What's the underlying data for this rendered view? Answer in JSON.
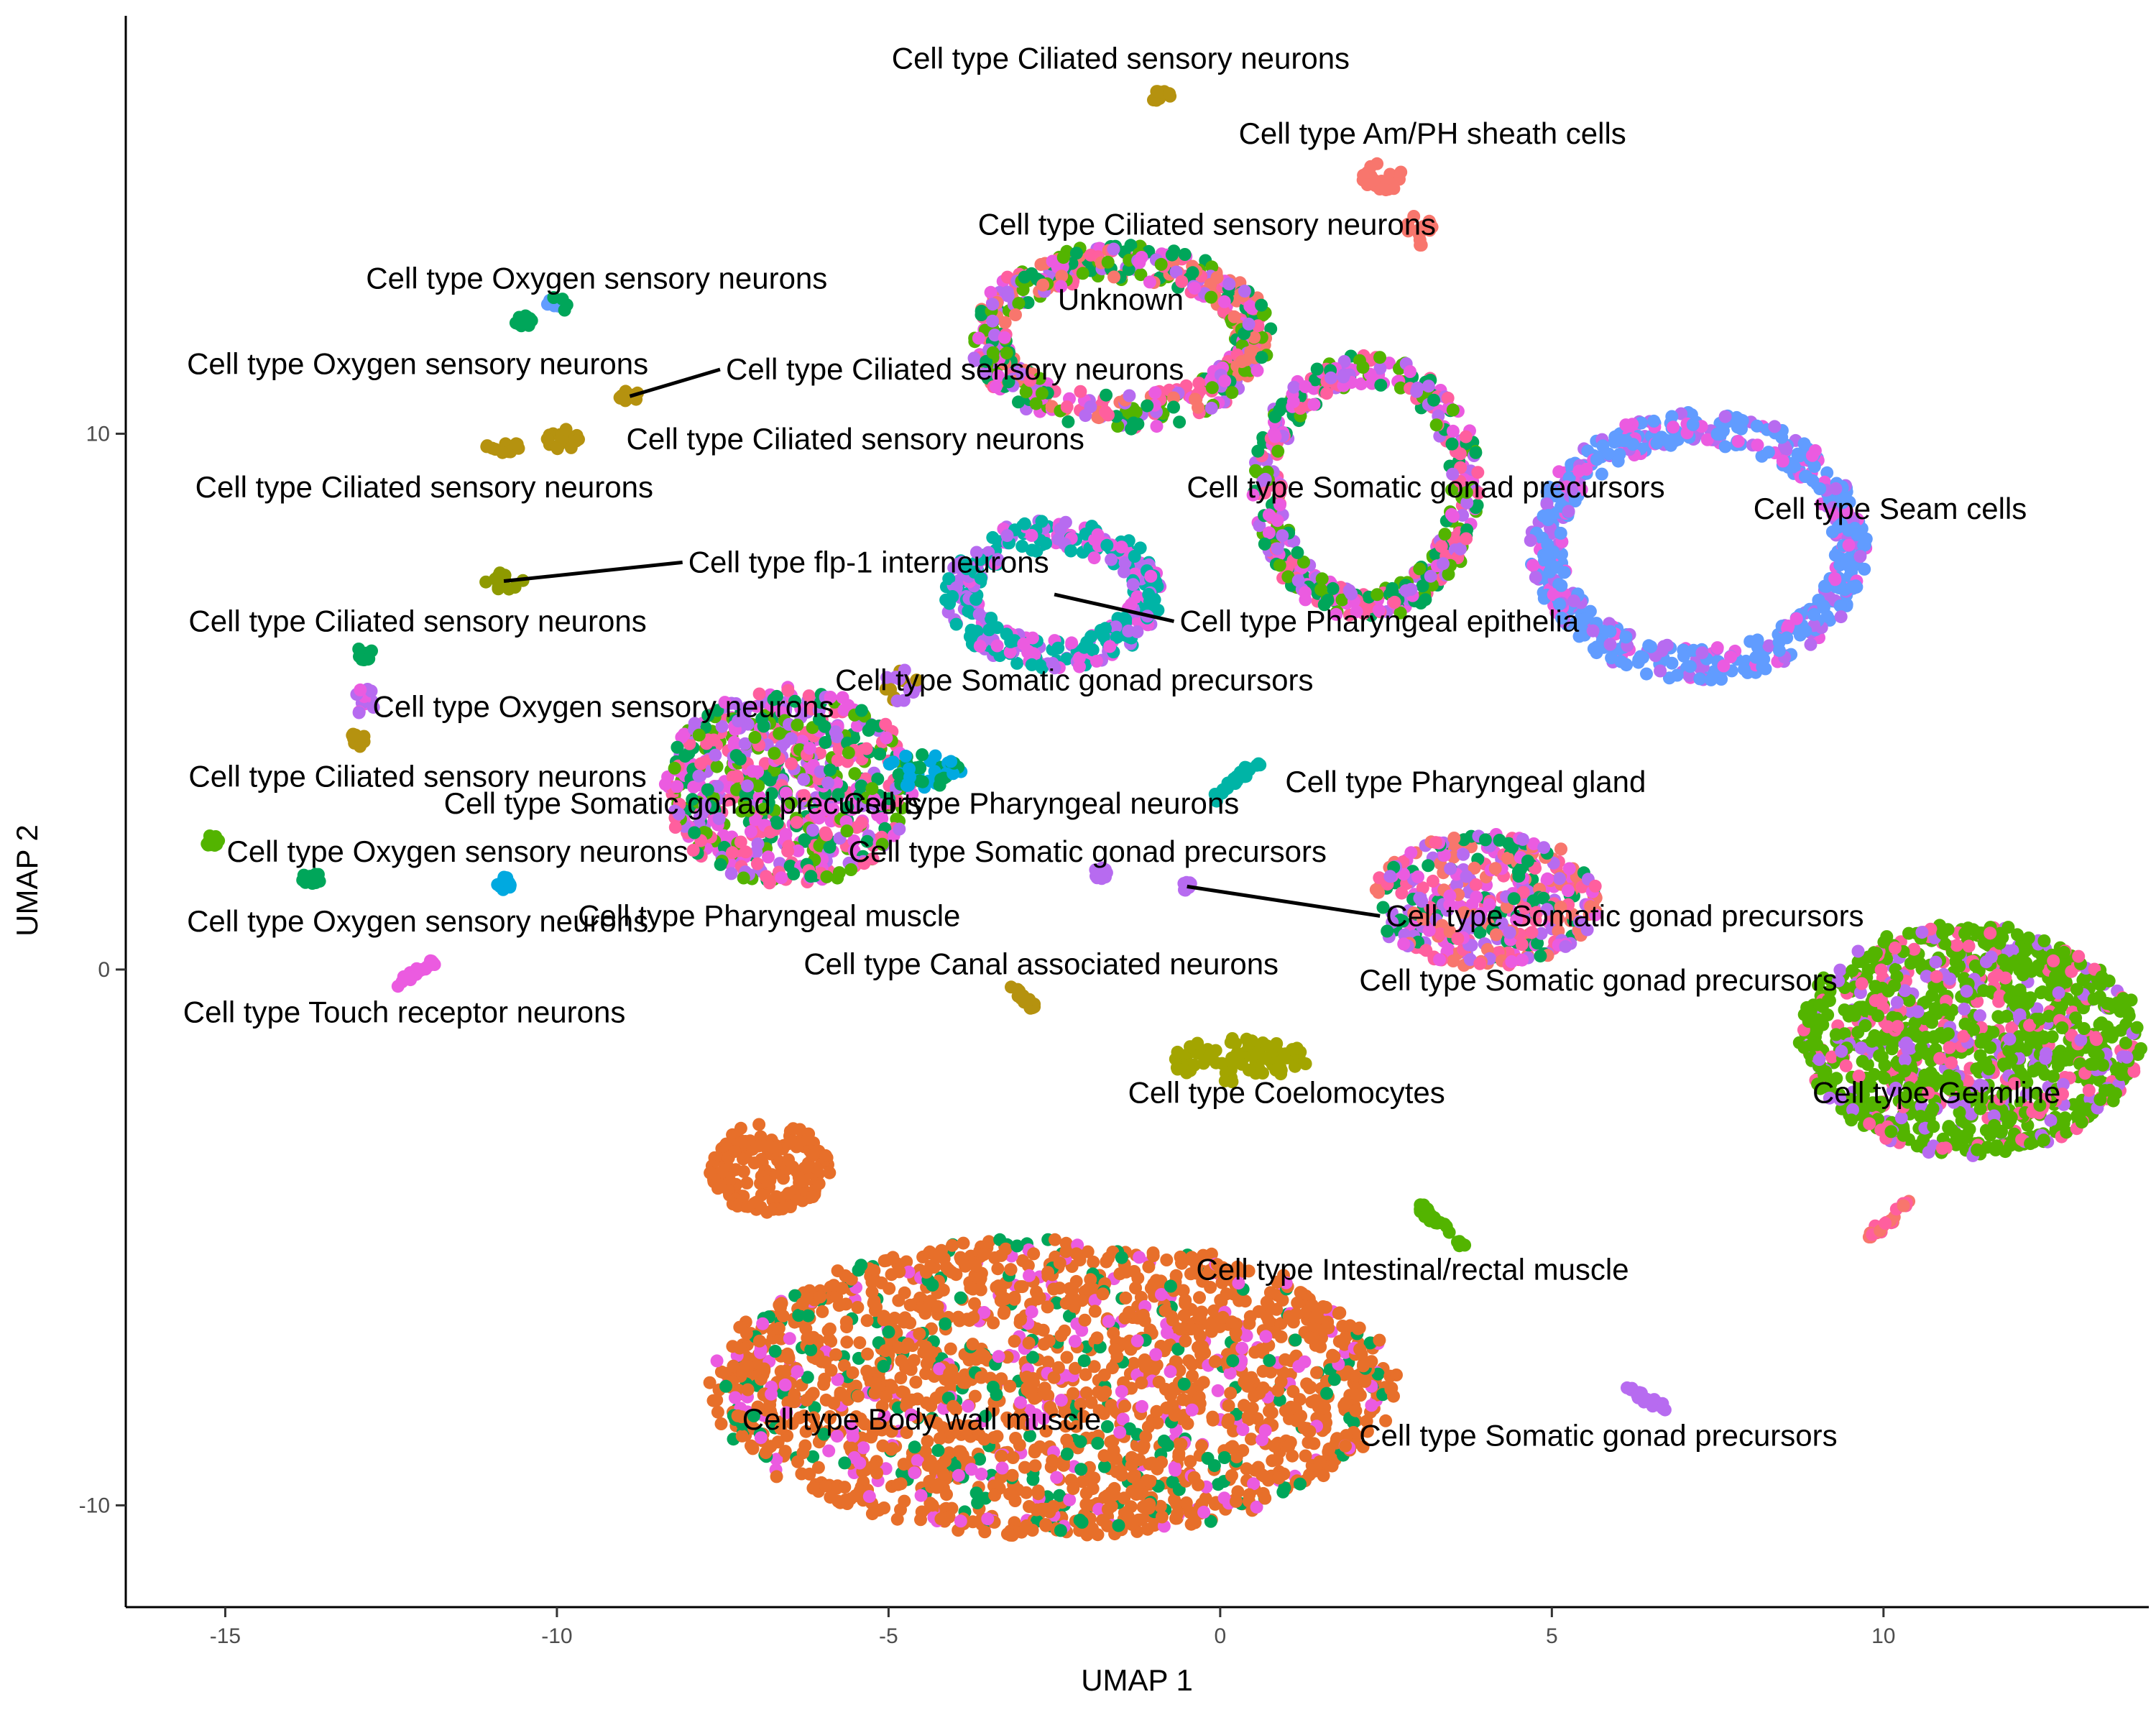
{
  "chart_data": {
    "type": "scatter",
    "xlabel": "UMAP 1",
    "ylabel": "UMAP 2",
    "xlim": [
      -16.5,
      14.0
    ],
    "ylim": [
      -11.9,
      17.8
    ],
    "x_ticks": [
      {
        "value": -15,
        "label": "-15"
      },
      {
        "value": -10,
        "label": "-10"
      },
      {
        "value": -5,
        "label": "-5"
      },
      {
        "value": 0,
        "label": "0"
      },
      {
        "value": 5,
        "label": "5"
      },
      {
        "value": 10,
        "label": "10"
      }
    ],
    "y_ticks": [
      {
        "value": -10,
        "label": "-10"
      },
      {
        "value": 0,
        "label": "0"
      },
      {
        "value": 10,
        "label": "10"
      }
    ],
    "grid": false,
    "legend": "none",
    "colors": {
      "red": "#F8766D",
      "orange": "#E76F2A",
      "olive": "#A3A500",
      "gold": "#B5920F",
      "green": "#53B400",
      "emerald": "#00A65A",
      "teal": "#00B4A6",
      "sky": "#00A9E0",
      "blue": "#619CFF",
      "violet": "#B76BF0",
      "magenta": "#EB5BE0",
      "pink": "#FF5F9E",
      "yellowgreen": "#8E9A00"
    },
    "clusters": [
      {
        "label": "Cell type Ciliated sensory neurons",
        "label_x": -1.5,
        "label_y": 17.0,
        "shape": "blob",
        "cx": -0.9,
        "cy": 16.3,
        "rx": 0.15,
        "ry": 0.1,
        "colors": [
          "gold"
        ]
      },
      {
        "label": "Cell type Am/PH sheath cells",
        "label_x": 3.2,
        "label_y": 15.6,
        "shape": "blob",
        "cx": 2.5,
        "cy": 14.8,
        "rx": 0.35,
        "ry": 0.25,
        "colors": [
          "red"
        ]
      },
      {
        "label": "Cell type Ciliated sensory neurons",
        "label_x": -0.2,
        "label_y": 13.9,
        "shape": "blob",
        "cx": 3.0,
        "cy": 13.8,
        "rx": 0.2,
        "ry": 0.3,
        "colors": [
          "red"
        ]
      },
      {
        "label": "Unknown",
        "label_x": -1.5,
        "label_y": 12.5,
        "shape": "ring",
        "cx": -1.5,
        "cy": 11.8,
        "rx": 2.0,
        "ry": 1.4,
        "width": 0.55,
        "colors": [
          "pink",
          "red",
          "magenta",
          "violet",
          "emerald",
          "green"
        ]
      },
      {
        "label": "Cell type Oxygen sensory neurons",
        "label_x": -9.4,
        "label_y": 12.9,
        "shape": "blob",
        "cx": -10.0,
        "cy": 12.4,
        "rx": 0.15,
        "ry": 0.15,
        "colors": [
          "emerald",
          "blue"
        ]
      },
      {
        "label": "Cell type Oxygen sensory neurons",
        "label_x": -12.1,
        "label_y": 11.3,
        "shape": "blob",
        "cx": -10.5,
        "cy": 12.1,
        "rx": 0.12,
        "ry": 0.1,
        "colors": [
          "emerald"
        ]
      },
      {
        "label": "Cell type Ciliated sensory neurons",
        "label_x": -4.0,
        "label_y": 11.2,
        "shape": "blob",
        "cx": -8.9,
        "cy": 10.7,
        "rx": 0.15,
        "ry": 0.1,
        "colors": [
          "gold"
        ],
        "leader": true
      },
      {
        "label": "Cell type Ciliated sensory neurons",
        "label_x": -5.5,
        "label_y": 9.9,
        "shape": "blob",
        "cx": -9.9,
        "cy": 9.9,
        "rx": 0.25,
        "ry": 0.2,
        "colors": [
          "gold"
        ]
      },
      {
        "label": "Cell type Ciliated sensory neurons",
        "label_x": -12.0,
        "label_y": 9.0,
        "shape": "blob",
        "cx": -10.8,
        "cy": 9.75,
        "rx": 0.25,
        "ry": 0.1,
        "colors": [
          "gold"
        ]
      },
      {
        "label": "Cell type flp-1 interneurons",
        "label_x": -5.3,
        "label_y": 7.6,
        "shape": "blob",
        "cx": -10.8,
        "cy": 7.25,
        "rx": 0.3,
        "ry": 0.15,
        "colors": [
          "yellowgreen"
        ],
        "leader": true
      },
      {
        "label": "Cell type Somatic gonad precursors",
        "label_x": 3.1,
        "label_y": 9.0,
        "shape": "ring",
        "cx": 2.2,
        "cy": 9.0,
        "rx": 1.5,
        "ry": 2.2,
        "width": 0.45,
        "colors": [
          "pink",
          "violet",
          "emerald",
          "magenta",
          "green"
        ]
      },
      {
        "label": "Cell type Seam cells",
        "label_x": 10.1,
        "label_y": 8.6,
        "shape": "ring",
        "cx": 7.2,
        "cy": 7.9,
        "rx": 2.3,
        "ry": 2.2,
        "width": 0.5,
        "colors": [
          "blue",
          "blue",
          "blue",
          "violet",
          "magenta"
        ]
      },
      {
        "label": "Cell type Pharyngeal epithelia",
        "label_x": 2.4,
        "label_y": 6.5,
        "shape": "ring",
        "cx": -2.5,
        "cy": 7.0,
        "rx": 1.4,
        "ry": 1.1,
        "width": 0.5,
        "colors": [
          "teal",
          "teal",
          "violet",
          "magenta"
        ],
        "leader": true
      },
      {
        "label": "Cell type Ciliated sensory neurons",
        "label_x": -12.1,
        "label_y": 6.5,
        "shape": "blob",
        "cx": -12.9,
        "cy": 5.9,
        "rx": 0.12,
        "ry": 0.12,
        "colors": [
          "emerald"
        ]
      },
      {
        "label": "Cell type Somatic gonad precursors",
        "label_x": -2.2,
        "label_y": 5.4,
        "shape": "blob",
        "cx": -4.8,
        "cy": 5.3,
        "rx": 0.25,
        "ry": 0.3,
        "colors": [
          "gold",
          "violet"
        ]
      },
      {
        "label": "Cell type Oxygen sensory neurons",
        "label_x": -9.3,
        "label_y": 4.9,
        "shape": "blob",
        "cx": -12.9,
        "cy": 5.0,
        "rx": 0.15,
        "ry": 0.25,
        "colors": [
          "magenta",
          "violet"
        ]
      },
      {
        "label": "Cell type Ciliated sensory neurons",
        "label_x": -12.1,
        "label_y": 3.6,
        "shape": "blob",
        "cx": -13.0,
        "cy": 4.3,
        "rx": 0.1,
        "ry": 0.15,
        "colors": [
          "gold"
        ]
      },
      {
        "label": "Cell type Somatic gonad precursors",
        "label_x": -8.1,
        "label_y": 3.1,
        "shape": "blob",
        "cx": -6.5,
        "cy": 3.4,
        "rx": 1.8,
        "ry": 1.8,
        "colors": [
          "magenta",
          "violet",
          "pink",
          "emerald",
          "green"
        ]
      },
      {
        "label": "Cell type Pharyngeal neurons",
        "label_x": -2.7,
        "label_y": 3.1,
        "shape": "blob",
        "cx": -4.5,
        "cy": 3.7,
        "rx": 0.6,
        "ry": 0.3,
        "colors": [
          "sky",
          "emerald"
        ]
      },
      {
        "label": "Cell type Pharyngeal gland",
        "label_x": 3.7,
        "label_y": 3.5,
        "shape": "line",
        "x1": -0.1,
        "y1": 3.2,
        "x2": 0.6,
        "y2": 3.9,
        "colors": [
          "teal"
        ]
      },
      {
        "label": "Cell type Oxygen sensory neurons",
        "label_x": -11.5,
        "label_y": 2.2,
        "shape": "blob",
        "cx": -15.2,
        "cy": 2.4,
        "rx": 0.1,
        "ry": 0.1,
        "colors": [
          "green"
        ]
      },
      {
        "label": "Cell type Somatic gonad precursors",
        "label_x": -2.0,
        "label_y": 2.2,
        "shape": "blob",
        "cx": -1.8,
        "cy": 1.8,
        "rx": 0.1,
        "ry": 0.1,
        "colors": [
          "violet"
        ]
      },
      {
        "label": "Cell type Somatic gonad precursors",
        "label_x": 6.1,
        "label_y": 1.0,
        "shape": "blob",
        "cx": -0.5,
        "cy": 1.55,
        "rx": 0.08,
        "ry": 0.08,
        "colors": [
          "violet"
        ],
        "leader": true
      },
      {
        "label": "Cell type Oxygen sensory neurons",
        "label_x": -12.1,
        "label_y": 0.9,
        "shape": "blob",
        "cx": -13.7,
        "cy": 1.7,
        "rx": 0.15,
        "ry": 0.1,
        "colors": [
          "emerald"
        ]
      },
      {
        "label": "Cell type Pharyngeal muscle",
        "label_x": -6.8,
        "label_y": 1.0,
        "shape": "blob",
        "cx": -10.8,
        "cy": 1.6,
        "rx": 0.1,
        "ry": 0.12,
        "colors": [
          "sky"
        ]
      },
      {
        "label": "Cell type Canal associated neurons",
        "label_x": -2.7,
        "label_y": 0.1,
        "shape": "line",
        "x1": -3.2,
        "y1": -0.3,
        "x2": -2.8,
        "y2": -0.7,
        "colors": [
          "gold"
        ]
      },
      {
        "label": "Cell type Somatic gonad precursors",
        "label_x": 5.7,
        "label_y": -0.2,
        "shape": "blob",
        "cx": 4.0,
        "cy": 1.3,
        "rx": 1.7,
        "ry": 1.2,
        "colors": [
          "pink",
          "violet",
          "magenta",
          "emerald",
          "red"
        ]
      },
      {
        "label": "Cell type Touch receptor neurons",
        "label_x": -12.3,
        "label_y": -0.8,
        "shape": "line",
        "x1": -12.4,
        "y1": -0.3,
        "x2": -11.8,
        "y2": 0.2,
        "colors": [
          "magenta"
        ]
      },
      {
        "label": "Cell type Coelomocytes",
        "label_x": 1.0,
        "label_y": -2.3,
        "shape": "blob",
        "cx": 0.3,
        "cy": -1.7,
        "rx": 1.0,
        "ry": 0.4,
        "colors": [
          "olive"
        ]
      },
      {
        "label": "Cell type Germline",
        "label_x": 10.8,
        "label_y": -2.3,
        "shape": "blob",
        "cx": 11.3,
        "cy": -1.3,
        "rx": 2.5,
        "ry": 2.1,
        "colors": [
          "green",
          "green",
          "green",
          "green",
          "violet",
          "pink"
        ]
      },
      {
        "label": "Cell type Germline",
        "label_x": 10.8,
        "label_y": -2.3,
        "shape": "line",
        "x1": 9.8,
        "y1": -5.0,
        "x2": 10.4,
        "y2": -4.3,
        "colors": [
          "pink",
          "red"
        ]
      },
      {
        "label": "Cell type Intestinal/rectal muscle",
        "label_x": 2.9,
        "label_y": -5.6,
        "shape": "line",
        "x1": 3.0,
        "y1": -4.4,
        "x2": 3.7,
        "y2": -5.2,
        "colors": [
          "green"
        ]
      },
      {
        "label": "Cell type Body wall muscle",
        "label_x": -4.5,
        "label_y": -8.4,
        "shape": "blob",
        "cx": -2.5,
        "cy": -7.8,
        "rx": 5.0,
        "ry": 2.7,
        "colors": [
          "orange",
          "orange",
          "orange",
          "orange",
          "orange",
          "orange",
          "magenta",
          "emerald"
        ]
      },
      {
        "label": "Cell type Body wall muscle",
        "label_x": -4.5,
        "label_y": -8.4,
        "shape": "blob",
        "cx": -6.8,
        "cy": -3.7,
        "rx": 0.9,
        "ry": 0.8,
        "colors": [
          "orange"
        ]
      },
      {
        "label": "Cell type Somatic gonad precursors",
        "label_x": 5.7,
        "label_y": -8.7,
        "shape": "line",
        "x1": 6.1,
        "y1": -7.8,
        "x2": 6.7,
        "y2": -8.2,
        "colors": [
          "violet"
        ]
      }
    ]
  }
}
